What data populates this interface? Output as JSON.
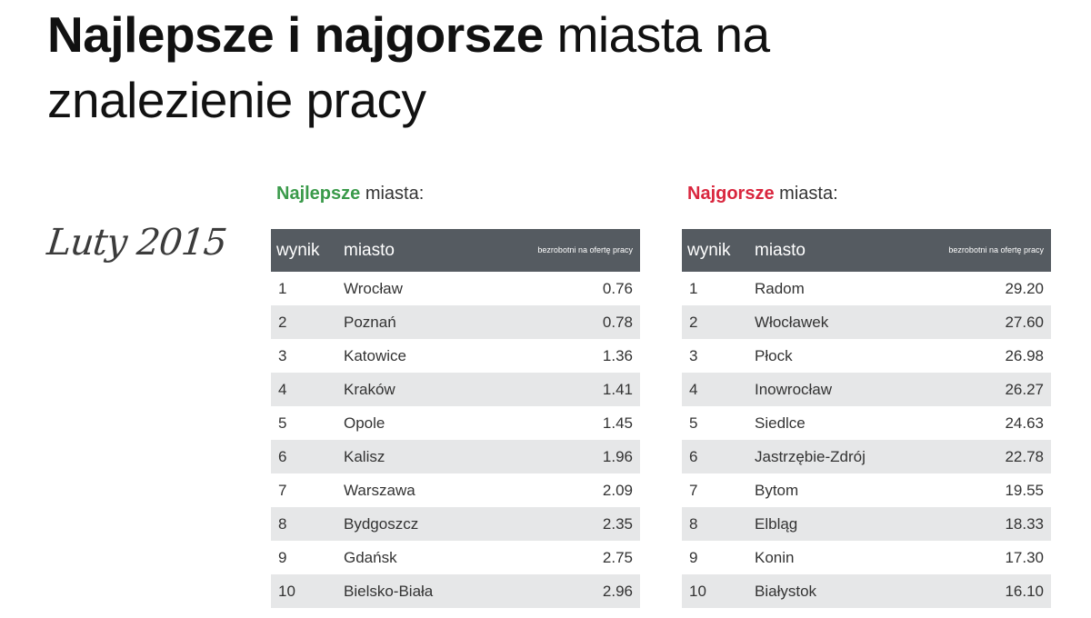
{
  "title": {
    "bold": "Najlepsze i najgorsze",
    "rest": "miasta na",
    "line2": "znalezienie pracy"
  },
  "date": "Luty 2015",
  "colors": {
    "best_accent": "#3a9a4a",
    "worst_accent": "#d9263e",
    "header_bg": "#555b61",
    "stripe_bg": "#e6e7e8"
  },
  "best": {
    "label_highlight": "Najlepsze",
    "label_rest": "miasta:",
    "headers": [
      "wynik",
      "miasto",
      "bezrobotni na ofertę pracy"
    ],
    "rows": [
      [
        "1",
        "Wrocław",
        "0.76"
      ],
      [
        "2",
        "Poznań",
        "0.78"
      ],
      [
        "3",
        "Katowice",
        "1.36"
      ],
      [
        "4",
        "Kraków",
        "1.41"
      ],
      [
        "5",
        "Opole",
        "1.45"
      ],
      [
        "6",
        "Kalisz",
        "1.96"
      ],
      [
        "7",
        "Warszawa",
        "2.09"
      ],
      [
        "8",
        "Bydgoszcz",
        "2.35"
      ],
      [
        "9",
        "Gdańsk",
        "2.75"
      ],
      [
        "10",
        "Bielsko-Biała",
        "2.96"
      ]
    ]
  },
  "worst": {
    "label_highlight": "Najgorsze",
    "label_rest": "miasta:",
    "headers": [
      "wynik",
      "miasto",
      "bezrobotni na ofertę pracy"
    ],
    "rows": [
      [
        "1",
        "Radom",
        "29.20"
      ],
      [
        "2",
        "Włocławek",
        "27.60"
      ],
      [
        "3",
        "Płock",
        "26.98"
      ],
      [
        "4",
        "Inowrocław",
        "26.27"
      ],
      [
        "5",
        "Siedlce",
        "24.63"
      ],
      [
        "6",
        "Jastrzębie-Zdrój",
        "22.78"
      ],
      [
        "7",
        "Bytom",
        "19.55"
      ],
      [
        "8",
        "Elbląg",
        "18.33"
      ],
      [
        "9",
        "Konin",
        "17.30"
      ],
      [
        "10",
        "Białystok",
        "16.10"
      ]
    ]
  }
}
